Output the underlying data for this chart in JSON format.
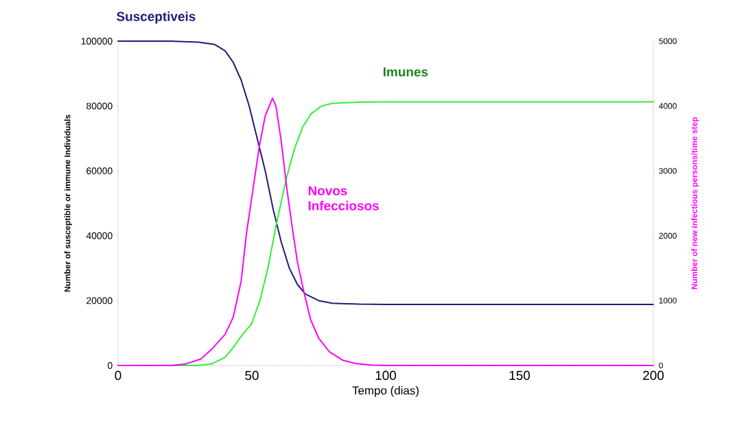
{
  "chart_data": {
    "type": "line",
    "xlabel": "Tempo (dias)",
    "ylabel": "Number of susceptible or immune Individuals",
    "y2label": "Number of new infectious persons/time step",
    "xlim": [
      0,
      200
    ],
    "xticks": [
      0,
      {
        "value": 10,
        "label": null
      },
      {
        "value": 20,
        "label": null
      },
      {
        "value": 30,
        "label": null
      },
      {
        "value": 40,
        "label": null
      },
      50,
      {
        "value": 60,
        "label": null
      },
      {
        "value": 70,
        "label": null
      },
      {
        "value": 80,
        "label": null
      },
      {
        "value": 90,
        "label": null
      },
      100,
      {
        "value": 110,
        "label": null
      },
      {
        "value": 120,
        "label": null
      },
      {
        "value": 130,
        "label": null
      },
      {
        "value": 140,
        "label": null
      },
      150,
      {
        "value": 160,
        "label": null
      },
      {
        "value": 170,
        "label": null
      },
      {
        "value": 180,
        "label": null
      },
      {
        "value": 190,
        "label": null
      },
      200
    ],
    "ylim": [
      0,
      100000
    ],
    "yticks": [
      0,
      20000,
      40000,
      60000,
      80000,
      100000
    ],
    "y2lim": [
      0,
      5000
    ],
    "y2ticks": [
      0,
      1000,
      2000,
      3000,
      4000,
      5000
    ],
    "series": [
      {
        "name": "Susceptiveis",
        "color": "#1c1c7a",
        "x": [
          0,
          20,
          30,
          36,
          40,
          43,
          46,
          49,
          52,
          55,
          58,
          61,
          64,
          67,
          70,
          75,
          80,
          90,
          100,
          200
        ],
        "values": [
          100000,
          100000,
          99700,
          99000,
          97000,
          93500,
          88000,
          80000,
          70000,
          60000,
          48000,
          38000,
          30000,
          25000,
          22000,
          20000,
          19200,
          18900,
          18800,
          18800
        ]
      },
      {
        "name": "Imunes",
        "color": "#33ee33",
        "x": [
          0,
          30,
          35,
          40,
          43,
          46,
          50,
          53,
          56,
          59,
          63,
          66,
          69,
          72,
          76,
          80,
          90,
          100,
          200
        ],
        "values": [
          0,
          0,
          500,
          2500,
          5500,
          9000,
          13000,
          20000,
          30000,
          43000,
          58000,
          67000,
          73500,
          77500,
          80000,
          80800,
          81200,
          81300,
          81300
        ]
      },
      {
        "name": "Novos Infecciosos",
        "color": "#ff00ff",
        "axis": "y2",
        "x": [
          0,
          20,
          25,
          31,
          35,
          40,
          43,
          46,
          48,
          50,
          52.8,
          55,
          57.7,
          59,
          61,
          63,
          65,
          67,
          69.5,
          72,
          75,
          79,
          84,
          89,
          95,
          100,
          200
        ],
        "values": [
          0,
          0,
          20,
          100,
          250,
          480,
          740,
          1300,
          2040,
          2600,
          3380,
          3850,
          4120,
          4000,
          3450,
          2750,
          2150,
          1600,
          1120,
          700,
          420,
          210,
          80,
          30,
          5,
          0,
          0
        ]
      }
    ]
  }
}
